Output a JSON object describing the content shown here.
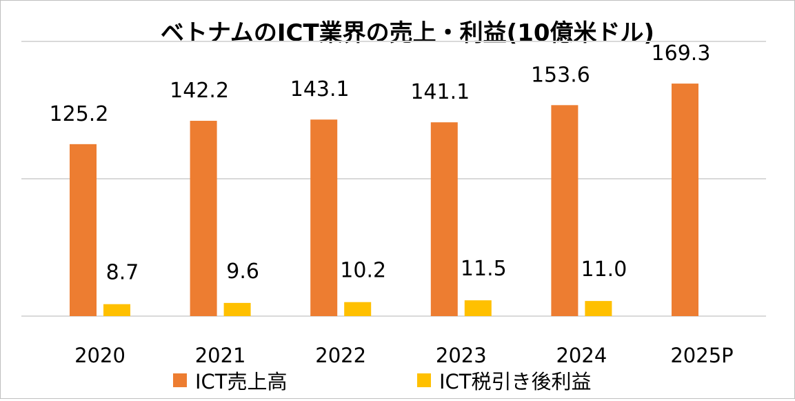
{
  "chart_data": {
    "type": "bar",
    "title": "ベトナムのICT業界の売上・利益(10億米ドル)",
    "categories": [
      "2020",
      "2021",
      "2022",
      "2023",
      "2024",
      "2025P"
    ],
    "series": [
      {
        "name": "ICT売上高",
        "color": "#ED7D31",
        "values": [
          125.2,
          142.2,
          143.1,
          141.1,
          153.6,
          169.3
        ],
        "labels": [
          "125.2",
          "142.2",
          "143.1",
          "141.1",
          "153.6",
          "169.3"
        ]
      },
      {
        "name": "ICT税引き後利益",
        "color": "#FFC000",
        "values": [
          8.7,
          9.6,
          10.2,
          11.5,
          11.0,
          null
        ],
        "labels": [
          "8.7",
          "9.6",
          "10.2",
          "11.5",
          "11.0",
          null
        ]
      }
    ],
    "ylim": [
      0,
      200
    ],
    "gridlines": [
      0,
      100,
      200
    ],
    "grid": true,
    "y_axis_labels_shown": false,
    "legend_position": "bottom"
  }
}
